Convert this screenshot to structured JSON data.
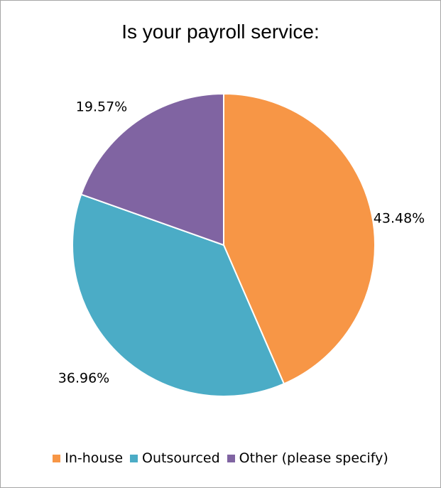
{
  "chart_data": {
    "type": "pie",
    "title": "Is your payroll service:",
    "slices": [
      {
        "label": "In-house",
        "value": 43.48,
        "display": "43.48%",
        "color": "#F79646"
      },
      {
        "label": "Outsourced",
        "value": 36.96,
        "display": "36.96%",
        "color": "#4BACC6"
      },
      {
        "label": "Other (please specify)",
        "value": 19.57,
        "display": "19.57%",
        "color": "#8064A2"
      }
    ],
    "legend_position": "bottom"
  }
}
